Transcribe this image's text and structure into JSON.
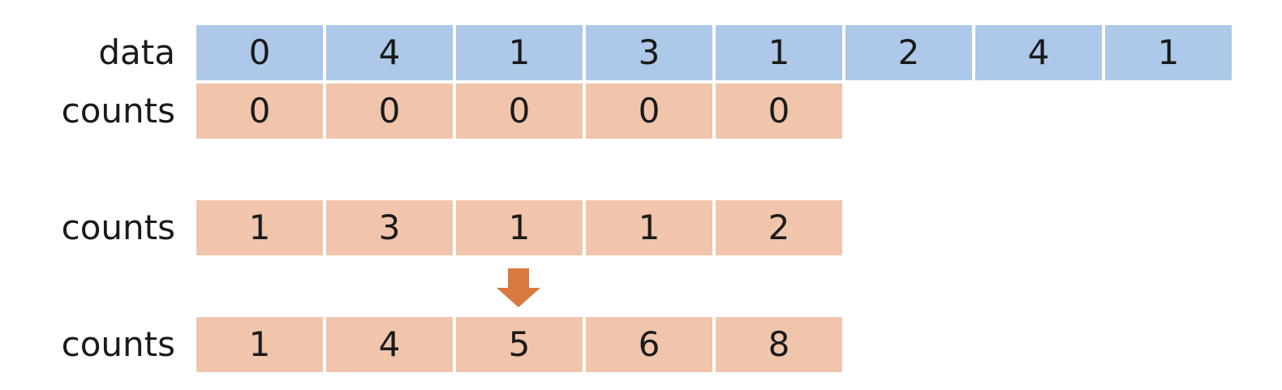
{
  "rows": [
    {
      "label": "data",
      "values": [
        "0",
        "4",
        "1",
        "3",
        "1",
        "2",
        "4",
        "1"
      ]
    },
    {
      "label": "counts",
      "values": [
        "0",
        "0",
        "0",
        "0",
        "0"
      ]
    },
    {
      "label": "counts",
      "values": [
        "1",
        "3",
        "1",
        "1",
        "2"
      ]
    },
    {
      "label": "counts",
      "values": [
        "1",
        "4",
        "5",
        "6",
        "8"
      ]
    }
  ],
  "colors": {
    "data_cell": "#adc8e8",
    "counts_cell": "#f0c5ab",
    "arrow": "#d9783f"
  },
  "icons": {
    "transition": "down-arrow-icon"
  }
}
